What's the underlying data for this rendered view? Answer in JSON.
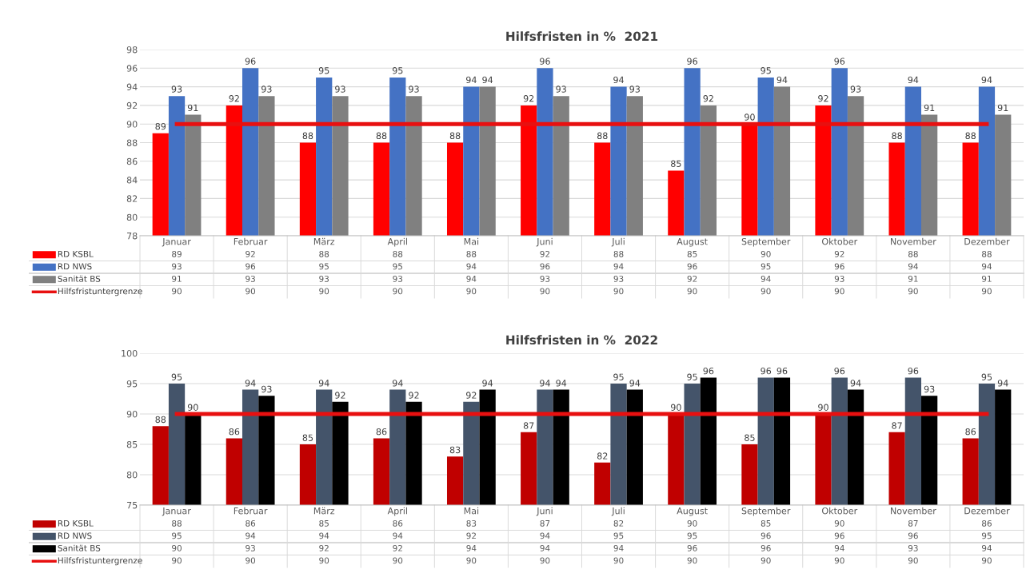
{
  "chart_data": [
    {
      "type": "bar",
      "title": "Hilfsfristen in %  2021",
      "categories": [
        "Januar",
        "Februar",
        "März",
        "April",
        "Mai",
        "Juni",
        "Juli",
        "August",
        "September",
        "Oktober",
        "November",
        "Dezember"
      ],
      "series": [
        {
          "name": "RD KSBL",
          "color": "#ff0000",
          "values": [
            89,
            92,
            88,
            88,
            88,
            92,
            88,
            85,
            90,
            92,
            88,
            88
          ],
          "value_labels": [
            "89",
            "92",
            "88",
            "88",
            "88",
            "92",
            "88",
            "85",
            "90",
            "92",
            "88",
            "88"
          ]
        },
        {
          "name": "RD NWS",
          "color": "#4472c4",
          "values": [
            93,
            96,
            95,
            95,
            94,
            96,
            94,
            96,
            95,
            96,
            94,
            94
          ],
          "value_labels": [
            "93",
            "96",
            "95",
            "95",
            "94",
            "96",
            "94",
            "96",
            "95",
            "96",
            "94",
            "94"
          ]
        },
        {
          "name": "Sanität BS",
          "color": "#808080",
          "values": [
            91,
            93,
            93,
            93,
            94,
            93,
            93,
            92,
            94,
            93,
            91,
            91
          ],
          "value_labels": [
            "91",
            "93",
            "93",
            "93",
            "94",
            "93",
            "93",
            "92",
            "94",
            "93",
            "91",
            "91"
          ]
        },
        {
          "name": "Hilfsfristuntergrenze",
          "type": "line",
          "color": "#e81010",
          "values": [
            90,
            90,
            90,
            90,
            90,
            90,
            90,
            90,
            90,
            90,
            90,
            90
          ]
        }
      ],
      "annotations": [
        "89",
        "92",
        "88",
        "88",
        "88",
        "92",
        "88",
        "85",
        "90",
        "92",
        "88",
        "88",
        "93",
        "96",
        "95",
        "95",
        "94",
        "96",
        "94",
        "96",
        "95",
        "96",
        "94",
        "94",
        "91",
        "93",
        "93",
        "93",
        "94",
        "93",
        "93",
        "92",
        "94",
        "93",
        "91",
        "91"
      ],
      "ylim": [
        78,
        98
      ],
      "yticks": [
        78,
        80,
        82,
        84,
        86,
        88,
        90,
        92,
        94,
        96,
        98
      ],
      "grid": "y",
      "data_labels": true,
      "legend": "bottom"
    },
    {
      "type": "bar",
      "title": "Hilfsfristen in %  2022",
      "categories": [
        "Januar",
        "Februar",
        "März",
        "April",
        "Mai",
        "Juni",
        "Juli",
        "August",
        "September",
        "Oktober",
        "November",
        "Dezember"
      ],
      "series": [
        {
          "name": "RD KSBL",
          "color": "#c00000",
          "values": [
            88,
            86,
            85,
            86,
            83,
            87,
            82,
            90,
            85,
            90,
            87,
            86
          ],
          "value_labels": [
            "88",
            "86",
            "85",
            "86",
            "83",
            "87",
            "82",
            "90",
            "85",
            "90",
            "87",
            "86"
          ]
        },
        {
          "name": "RD NWS",
          "color": "#44546a",
          "values": [
            95,
            94,
            94,
            94,
            92,
            94,
            95,
            95,
            96,
            96,
            96,
            95
          ],
          "value_labels": [
            "95",
            "94",
            "94",
            "94",
            "92",
            "94",
            "95",
            "95",
            "96",
            "96",
            "96",
            "95"
          ]
        },
        {
          "name": "Sanität BS",
          "color": "#000000",
          "values": [
            90,
            93,
            92,
            92,
            94,
            94,
            94,
            96,
            96,
            94,
            93,
            94
          ],
          "value_labels": [
            "90",
            "93",
            "92",
            "92",
            "94",
            "94",
            "94",
            "96",
            "96",
            "94",
            "93",
            "94"
          ]
        },
        {
          "name": "Hilfsfristuntergrenze",
          "type": "line",
          "color": "#e81010",
          "values": [
            90,
            90,
            90,
            90,
            90,
            90,
            90,
            90,
            90,
            90,
            90,
            90
          ]
        }
      ],
      "annotations": [
        "88",
        "86",
        "85",
        "86",
        "83",
        "87",
        "82",
        "90",
        "85",
        "90",
        "87",
        "86",
        "95",
        "94",
        "94",
        "94",
        "92",
        "94",
        "95",
        "95",
        "96",
        "96",
        "96",
        "95",
        "90",
        "93",
        "92",
        "92",
        "94",
        "94",
        "94",
        "96",
        "96",
        "94",
        "93",
        "94"
      ],
      "ylim": [
        75,
        100
      ],
      "yticks": [
        75,
        80,
        85,
        90,
        95,
        100
      ],
      "grid": "y",
      "data_labels": true,
      "legend": "bottom"
    }
  ]
}
